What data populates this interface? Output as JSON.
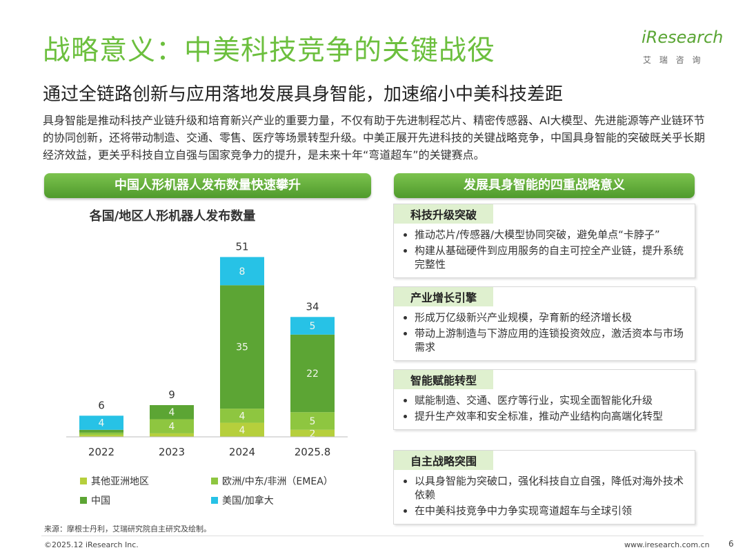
{
  "header": {
    "title": "战略意义：中美科技竞争的关键战役",
    "subtitle": "通过全链路创新与应用落地发展具身智能，加速缩小中美科技差距",
    "logo": "iResearch",
    "logo_sub": "艾 瑞 咨 询"
  },
  "intro": "具身智能是推动科技产业链升级和培育新兴产业的重要力量，不仅有助于先进制程芯片、精密传感器、AI大模型、先进能源等产业链环节的协同创新，还将带动制造、交通、零售、医疗等场景转型升级。中美正展开先进科技的关键战略竞争，中国具身智能的突破既关乎长期经济效益，更关乎科技自立自强与国家竞争力的提升，是未来十年“弯道超车”的关键赛点。",
  "left_heading": "中国人形机器人发布数量快速攀升",
  "right_heading": "发展具身智能的四重战略意义",
  "chart_data": {
    "type": "bar",
    "stacked": true,
    "title": "各国/地区人形机器人发布数量",
    "categories": [
      "2022",
      "2023",
      "2024",
      "2025.8"
    ],
    "series": [
      {
        "name": "其他亚洲地区",
        "color": "#b6cf3c",
        "values": [
          0.6,
          1,
          4,
          2
        ]
      },
      {
        "name": "欧洲/中东/非洲（EMEA）",
        "color": "#8ec640",
        "values": [
          0.6,
          4,
          4,
          5
        ]
      },
      {
        "name": "中国",
        "color": "#5ca534",
        "values": [
          0.8,
          4,
          35,
          22
        ]
      },
      {
        "name": "美国/加拿大",
        "color": "#27c2e6",
        "values": [
          4,
          0,
          8,
          5
        ]
      }
    ],
    "totals": [
      6,
      9,
      51,
      34
    ],
    "ylim": [
      0,
      55
    ]
  },
  "strategies": [
    {
      "title": "科技升级突破",
      "points": [
        "推动芯片/传感器/大模型协同突破，避免单点“卡脖子”",
        "构建从基础硬件到应用服务的自主可控全产业链，提升系统完整性"
      ]
    },
    {
      "title": "产业增长引擎",
      "points": [
        "形成万亿级新兴产业规模，孕育新的经济增长极",
        "带动上游制造与下游应用的连锁投资效应，激活资本与市场需求"
      ]
    },
    {
      "title": "智能赋能转型",
      "points": [
        "赋能制造、交通、医疗等行业，实现全面智能化升级",
        "提升生产效率和安全标准，推动产业结构向高端化转型"
      ]
    },
    {
      "title": "自主战略突围",
      "points": [
        "以具身智能为突破口，强化科技自立自强，降低对海外技术依赖",
        "在中美科技竞争中力争实现弯道超车与全球引领"
      ]
    }
  ],
  "footer": {
    "source": "来源：摩根士丹利，艾瑞研究院自主研究及绘制。",
    "copyright": "©2025.12 iResearch Inc.",
    "url": "www.iresearch.com.cn",
    "page": 6
  }
}
